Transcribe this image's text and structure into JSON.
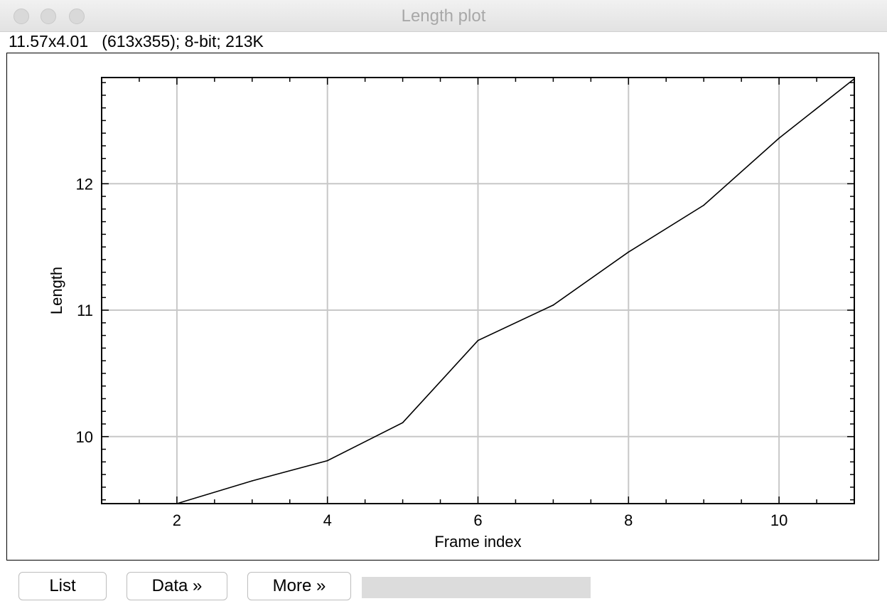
{
  "window": {
    "title": "Length plot",
    "info": "11.57x4.01   (613x355); 8-bit; 213K"
  },
  "buttons": {
    "list_label": "List",
    "data_label": "Data »",
    "more_label": "More »"
  },
  "chart_data": {
    "type": "line",
    "xlabel": "Frame index",
    "ylabel": "Length",
    "xlim": [
      1,
      11
    ],
    "ylim": [
      9.47,
      12.84
    ],
    "xticks": [
      2,
      4,
      6,
      8,
      10
    ],
    "yticks": [
      10,
      11,
      12
    ],
    "grid": true,
    "line_color": "#000000",
    "grid_color": "#c8c8c8",
    "series": [
      {
        "x": [
          1.5,
          2,
          3,
          4,
          5,
          6,
          7,
          8,
          9,
          10,
          11
        ],
        "y": [
          9.47,
          9.47,
          9.65,
          9.81,
          10.11,
          10.76,
          11.04,
          11.46,
          11.83,
          12.36,
          12.83
        ]
      }
    ]
  }
}
